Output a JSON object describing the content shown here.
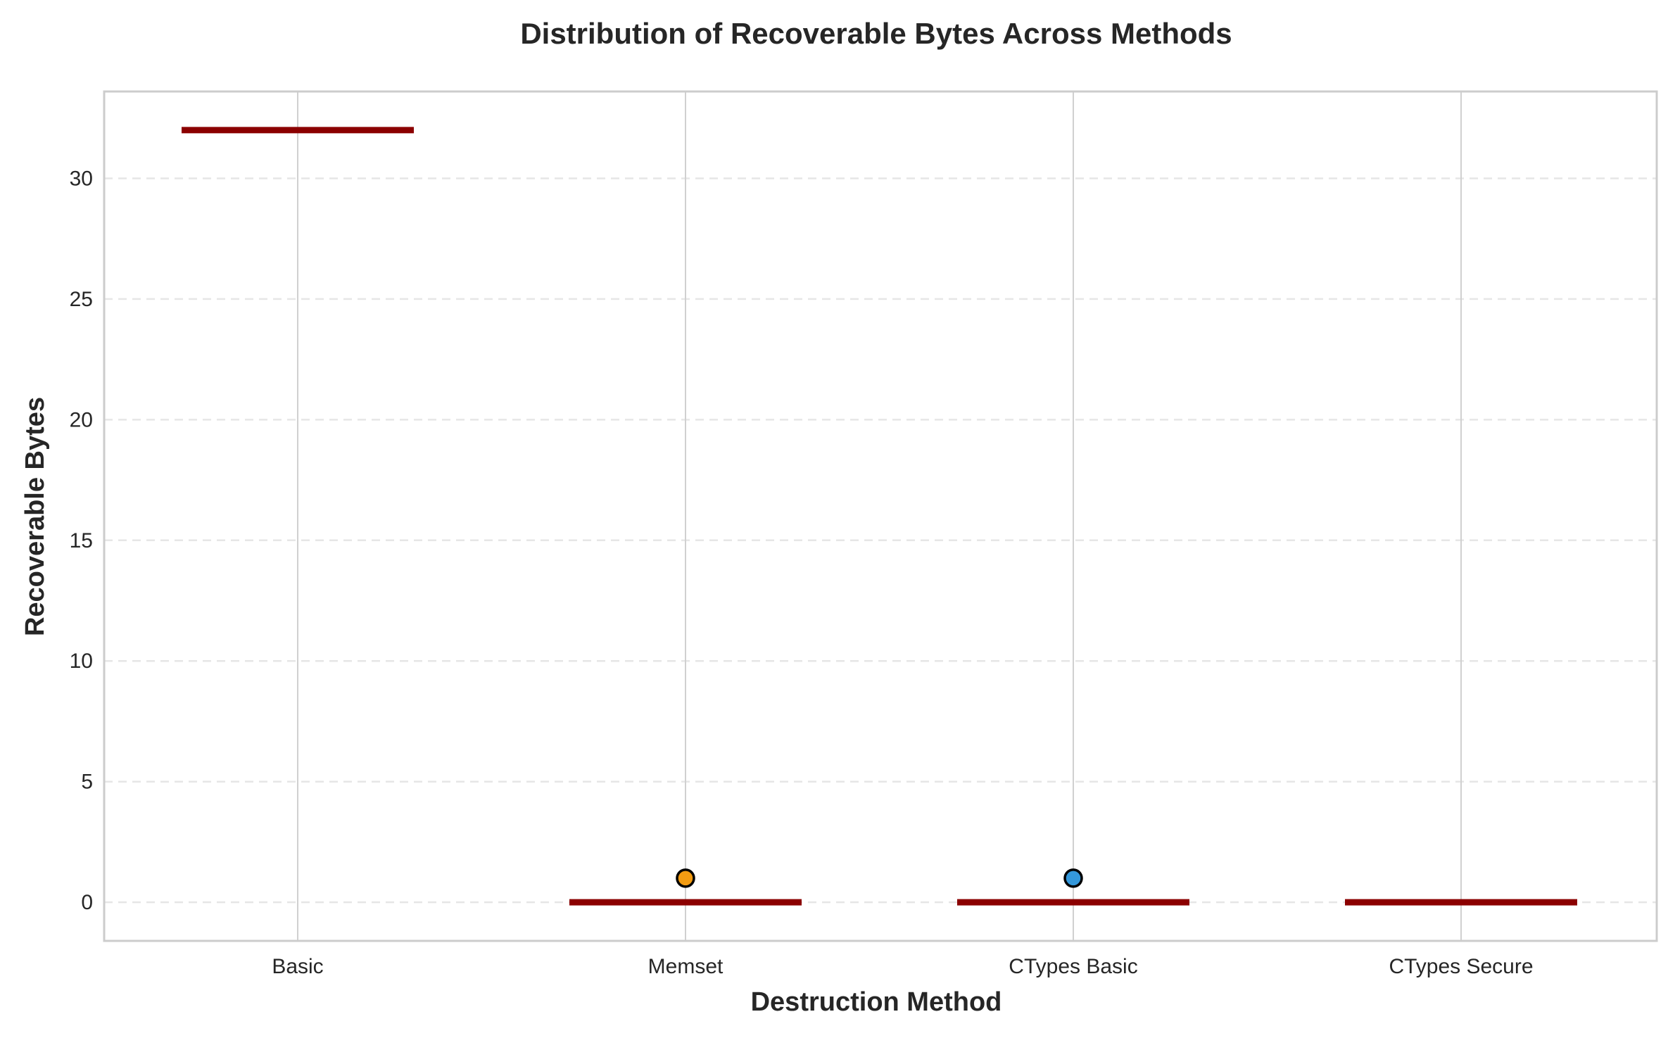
{
  "chart_data": {
    "type": "box",
    "title": "Distribution of Recoverable Bytes Across Methods",
    "xlabel": "Destruction Method",
    "ylabel": "Recoverable Bytes",
    "categories": [
      "Basic",
      "Memset",
      "CTypes Basic",
      "CTypes Secure"
    ],
    "medians": [
      32,
      0,
      0,
      0
    ],
    "outliers": [
      {
        "category": "Memset",
        "value": 1,
        "color": "#f39c12"
      },
      {
        "category": "CTypes Basic",
        "value": 1,
        "color": "#3498db"
      }
    ],
    "ylim": [
      -1.6,
      33.6
    ],
    "yticks": [
      0,
      5,
      10,
      15,
      20,
      25,
      30
    ],
    "grid": {
      "y": true,
      "y_style": "dashed",
      "x": true
    },
    "colors": {
      "median_line": "#8b0000",
      "grid": "#e6e6e6",
      "frame": "#cccccc",
      "outlier_edge": "#000000"
    }
  }
}
